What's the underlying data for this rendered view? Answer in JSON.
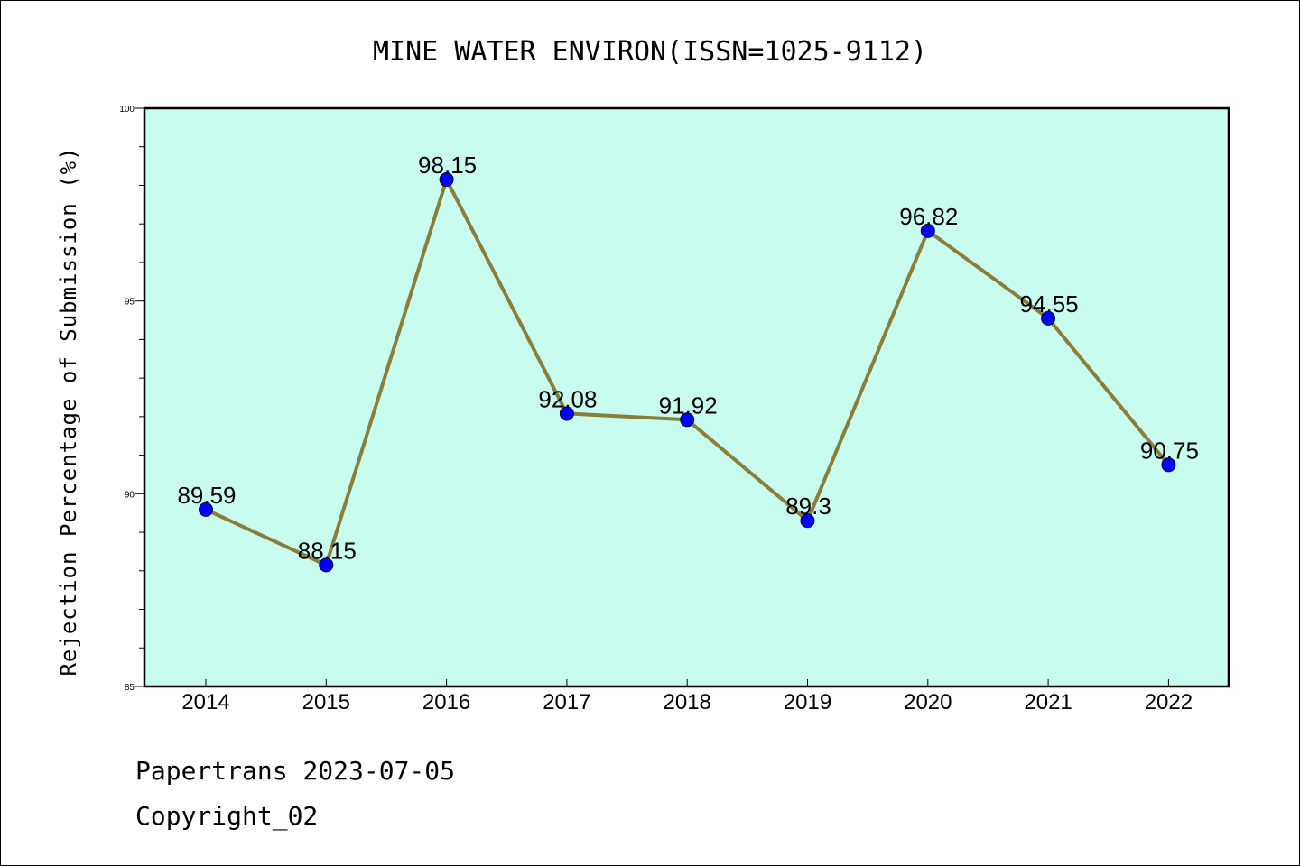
{
  "chart_data": {
    "type": "line",
    "title": "MINE WATER ENVIRON(ISSN=1025-9112)",
    "xlabel": "",
    "ylabel": "Rejection Percentage of Submission (%)",
    "categories": [
      "2014",
      "2015",
      "2016",
      "2017",
      "2018",
      "2019",
      "2020",
      "2021",
      "2022"
    ],
    "series": [
      {
        "values": [
          89.59,
          88.15,
          98.15,
          92.08,
          91.92,
          89.3,
          96.82,
          94.55,
          90.75
        ],
        "data_labels": [
          "89.59",
          "88.15",
          "98.15",
          "92.08",
          "91.92",
          "89.3",
          "96.82",
          "94.55",
          "90.75"
        ],
        "line_color": "#8b7d3a",
        "marker_color": "#0000ff"
      }
    ],
    "ylim": [
      85,
      100
    ],
    "yticks": [
      "85",
      "90",
      "95",
      "100"
    ],
    "plot_background": "#c8fcee",
    "grid": false,
    "legend": "none"
  },
  "footer": {
    "line1": "Papertrans 2023-07-05",
    "line2": "Copyright_02"
  }
}
